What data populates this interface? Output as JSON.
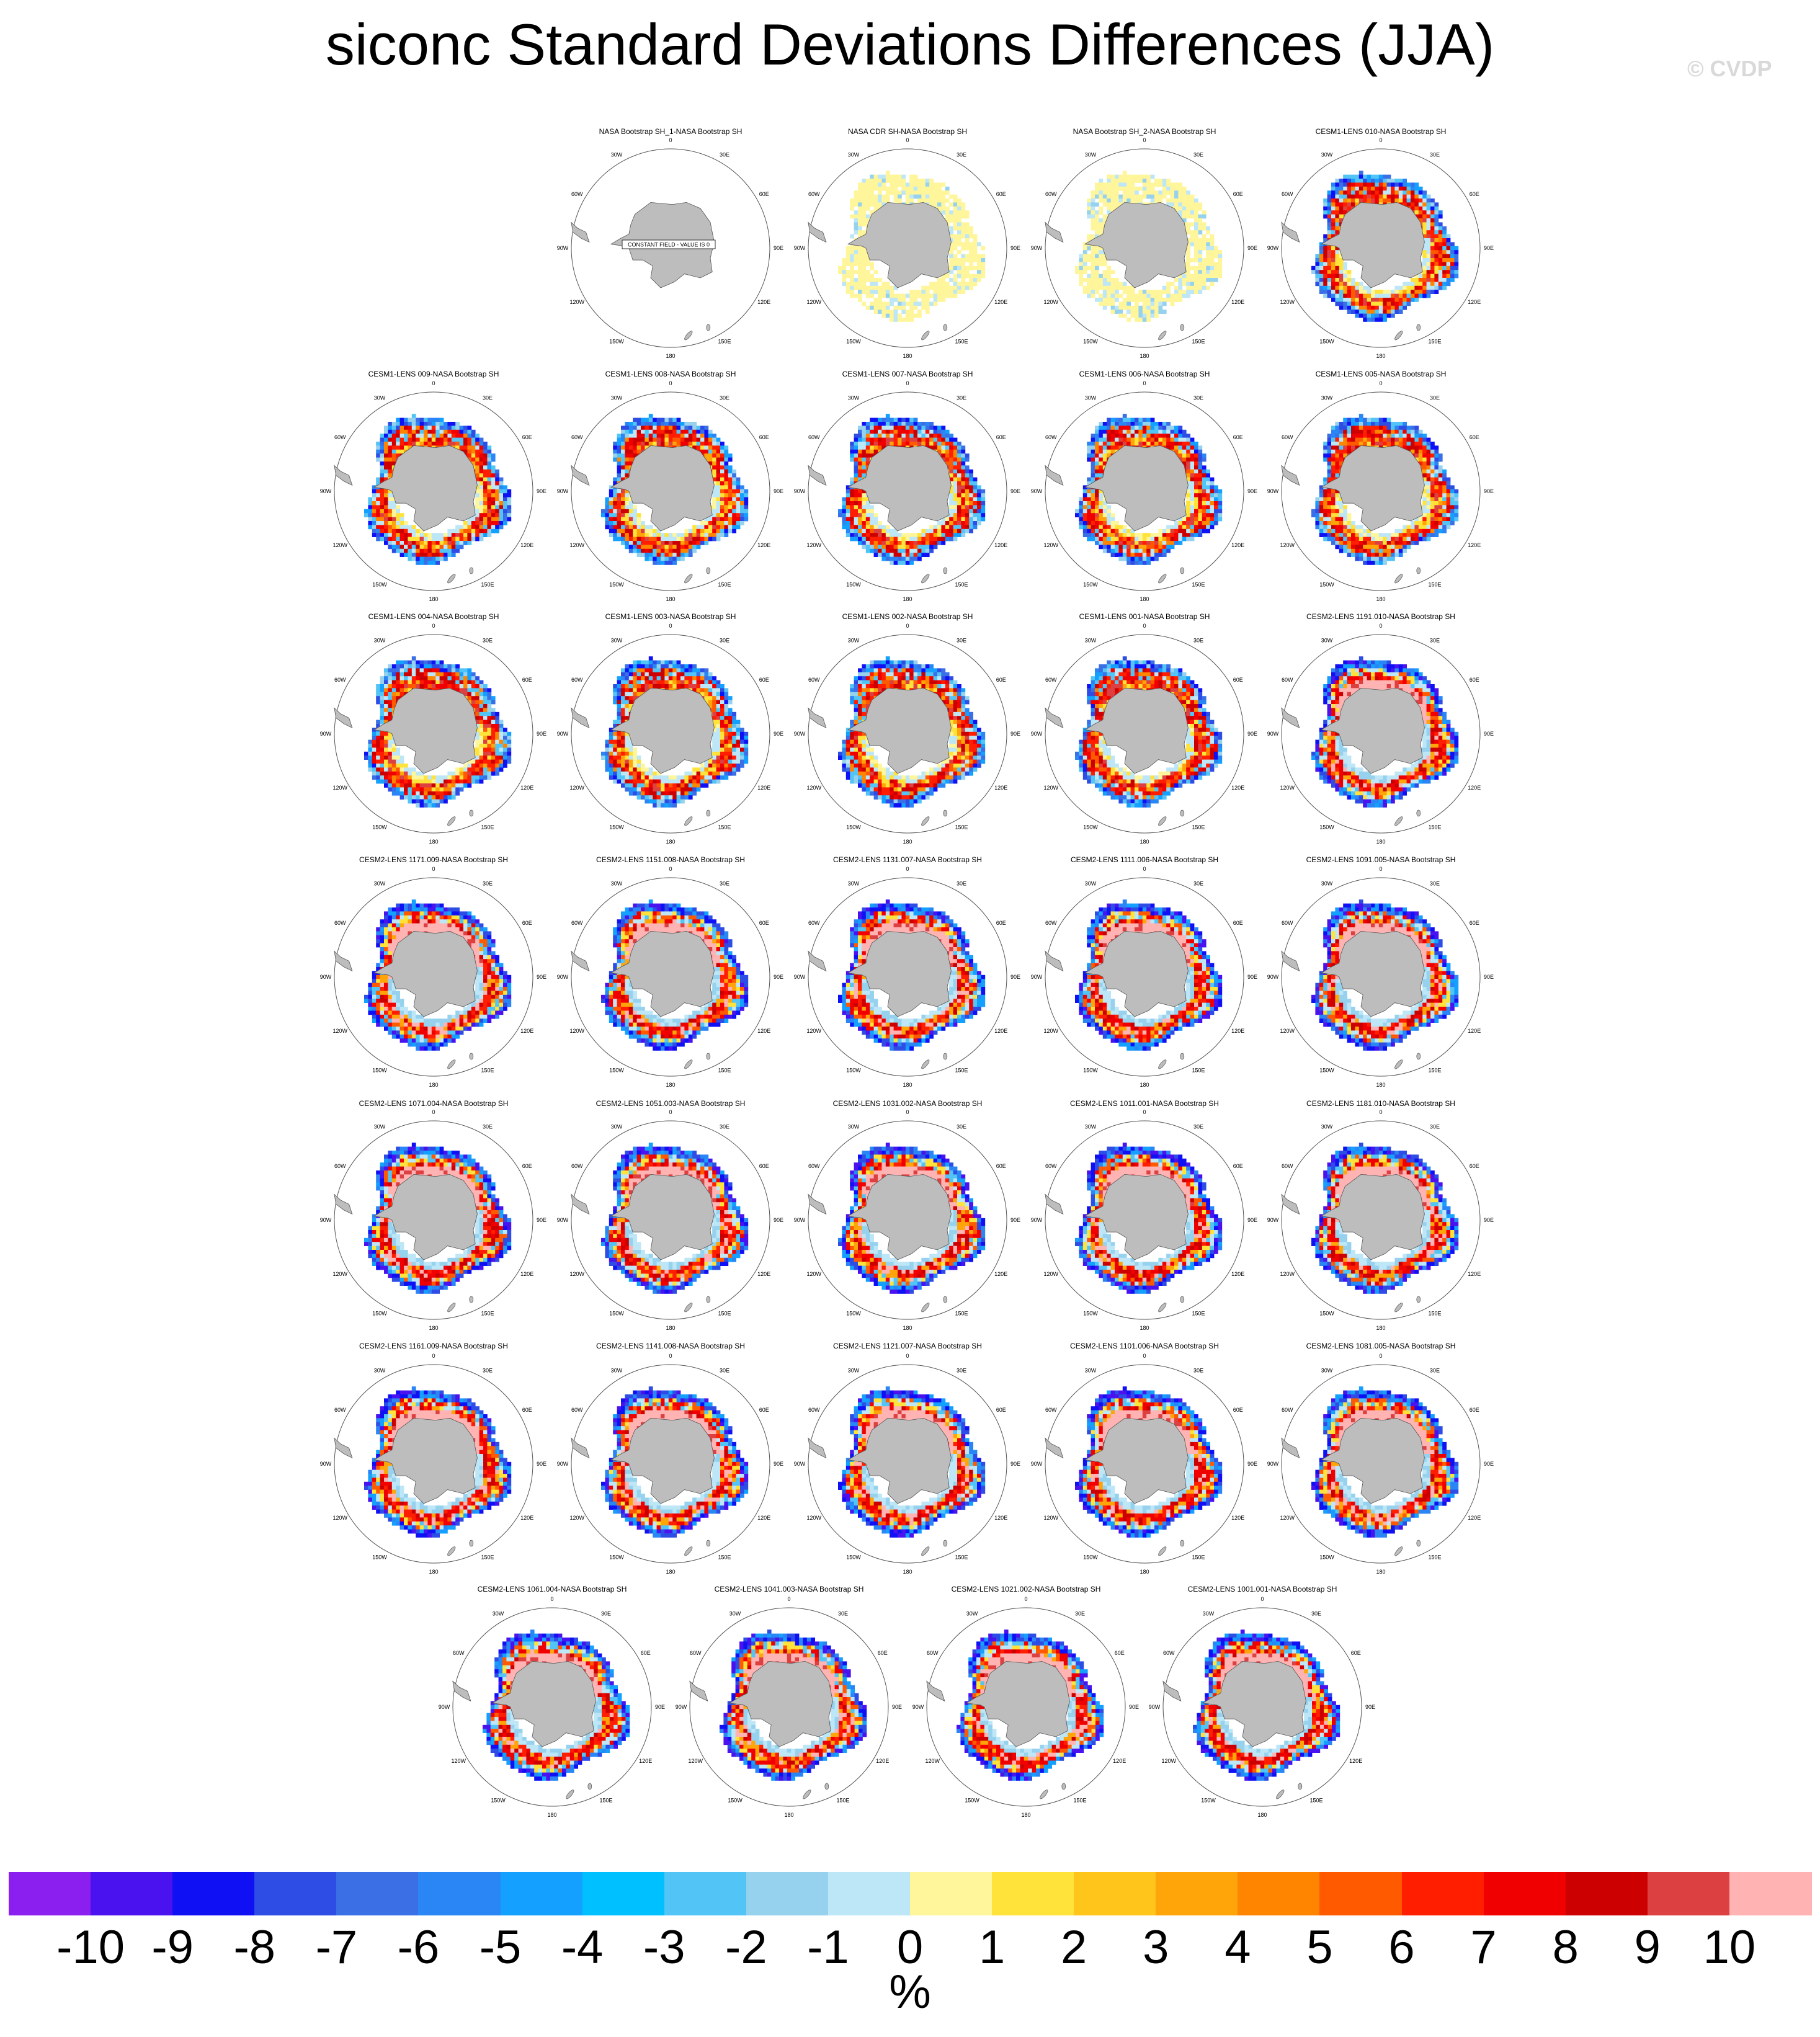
{
  "header": {
    "title": "siconc Standard Deviations Differences (JJA)",
    "watermark": "© CVDP"
  },
  "chart_data": {
    "type": "heatmap",
    "projection": "south polar stereographic",
    "title": "siconc Standard Deviations Differences (JJA)",
    "longitude_labels": [
      "0",
      "30E",
      "60E",
      "90E",
      "120E",
      "150E",
      "180",
      "150W",
      "120W",
      "90W",
      "60W",
      "30W"
    ],
    "constant_field_note": "CONSTANT FIELD - VALUE IS 0",
    "panels": [
      {
        "title": "NASA Bootstrap SH_1-NASA Bootstrap SH",
        "kind": "constant"
      },
      {
        "title": "NASA CDR SH-NASA Bootstrap SH",
        "kind": "obs"
      },
      {
        "title": "NASA Bootstrap SH_2-NASA Bootstrap SH",
        "kind": "obs"
      },
      {
        "title": "CESM1-LENS 010-NASA Bootstrap SH",
        "kind": "cesm1"
      },
      {
        "title": "CESM1-LENS 009-NASA Bootstrap SH",
        "kind": "cesm1"
      },
      {
        "title": "CESM1-LENS 008-NASA Bootstrap SH",
        "kind": "cesm1"
      },
      {
        "title": "CESM1-LENS 007-NASA Bootstrap SH",
        "kind": "cesm1"
      },
      {
        "title": "CESM1-LENS 006-NASA Bootstrap SH",
        "kind": "cesm1"
      },
      {
        "title": "CESM1-LENS 005-NASA Bootstrap SH",
        "kind": "cesm1"
      },
      {
        "title": "CESM1-LENS 004-NASA Bootstrap SH",
        "kind": "cesm1"
      },
      {
        "title": "CESM1-LENS 003-NASA Bootstrap SH",
        "kind": "cesm1"
      },
      {
        "title": "CESM1-LENS 002-NASA Bootstrap SH",
        "kind": "cesm1"
      },
      {
        "title": "CESM1-LENS 001-NASA Bootstrap SH",
        "kind": "cesm1"
      },
      {
        "title": "CESM2-LENS 1191.010-NASA Bootstrap SH",
        "kind": "cesm2"
      },
      {
        "title": "CESM2-LENS 1171.009-NASA Bootstrap SH",
        "kind": "cesm2"
      },
      {
        "title": "CESM2-LENS 1151.008-NASA Bootstrap SH",
        "kind": "cesm2"
      },
      {
        "title": "CESM2-LENS 1131.007-NASA Bootstrap SH",
        "kind": "cesm2"
      },
      {
        "title": "CESM2-LENS 1111.006-NASA Bootstrap SH",
        "kind": "cesm2"
      },
      {
        "title": "CESM2-LENS 1091.005-NASA Bootstrap SH",
        "kind": "cesm2"
      },
      {
        "title": "CESM2-LENS 1071.004-NASA Bootstrap SH",
        "kind": "cesm2"
      },
      {
        "title": "CESM2-LENS 1051.003-NASA Bootstrap SH",
        "kind": "cesm2"
      },
      {
        "title": "CESM2-LENS 1031.002-NASA Bootstrap SH",
        "kind": "cesm2"
      },
      {
        "title": "CESM2-LENS 1011.001-NASA Bootstrap SH",
        "kind": "cesm2"
      },
      {
        "title": "CESM2-LENS 1181.010-NASA Bootstrap SH",
        "kind": "cesm2"
      },
      {
        "title": "CESM2-LENS 1161.009-NASA Bootstrap SH",
        "kind": "cesm2"
      },
      {
        "title": "CESM2-LENS 1141.008-NASA Bootstrap SH",
        "kind": "cesm2"
      },
      {
        "title": "CESM2-LENS 1121.007-NASA Bootstrap SH",
        "kind": "cesm2"
      },
      {
        "title": "CESM2-LENS 1101.006-NASA Bootstrap SH",
        "kind": "cesm2"
      },
      {
        "title": "CESM2-LENS 1081.005-NASA Bootstrap SH",
        "kind": "cesm2"
      },
      {
        "title": "CESM2-LENS 1061.004-NASA Bootstrap SH",
        "kind": "cesm2"
      },
      {
        "title": "CESM2-LENS 1041.003-NASA Bootstrap SH",
        "kind": "cesm2"
      },
      {
        "title": "CESM2-LENS 1021.002-NASA Bootstrap SH",
        "kind": "cesm2"
      },
      {
        "title": "CESM2-LENS 1001.001-NASA Bootstrap SH",
        "kind": "cesm2"
      }
    ],
    "colorbar": {
      "units": "%",
      "labels": [
        "-10",
        "-9",
        "-8",
        "-7",
        "-6",
        "-5",
        "-4",
        "-3",
        "-2",
        "-1",
        "0",
        "1",
        "2",
        "3",
        "4",
        "5",
        "6",
        "7",
        "8",
        "9",
        "10"
      ],
      "colors": [
        "#8a1ff0",
        "#4a12ee",
        "#1010f5",
        "#2e4de5",
        "#3a6fe6",
        "#2a86f5",
        "#14a0ff",
        "#00c0ff",
        "#52c4f5",
        "#96d2ee",
        "#bde6f7",
        "#fff59a",
        "#ffe23a",
        "#ffc51a",
        "#ffa50a",
        "#ff8400",
        "#ff5a00",
        "#ff1e00",
        "#f00000",
        "#cc0000",
        "#dd4040",
        "#ffb3b3"
      ]
    }
  }
}
